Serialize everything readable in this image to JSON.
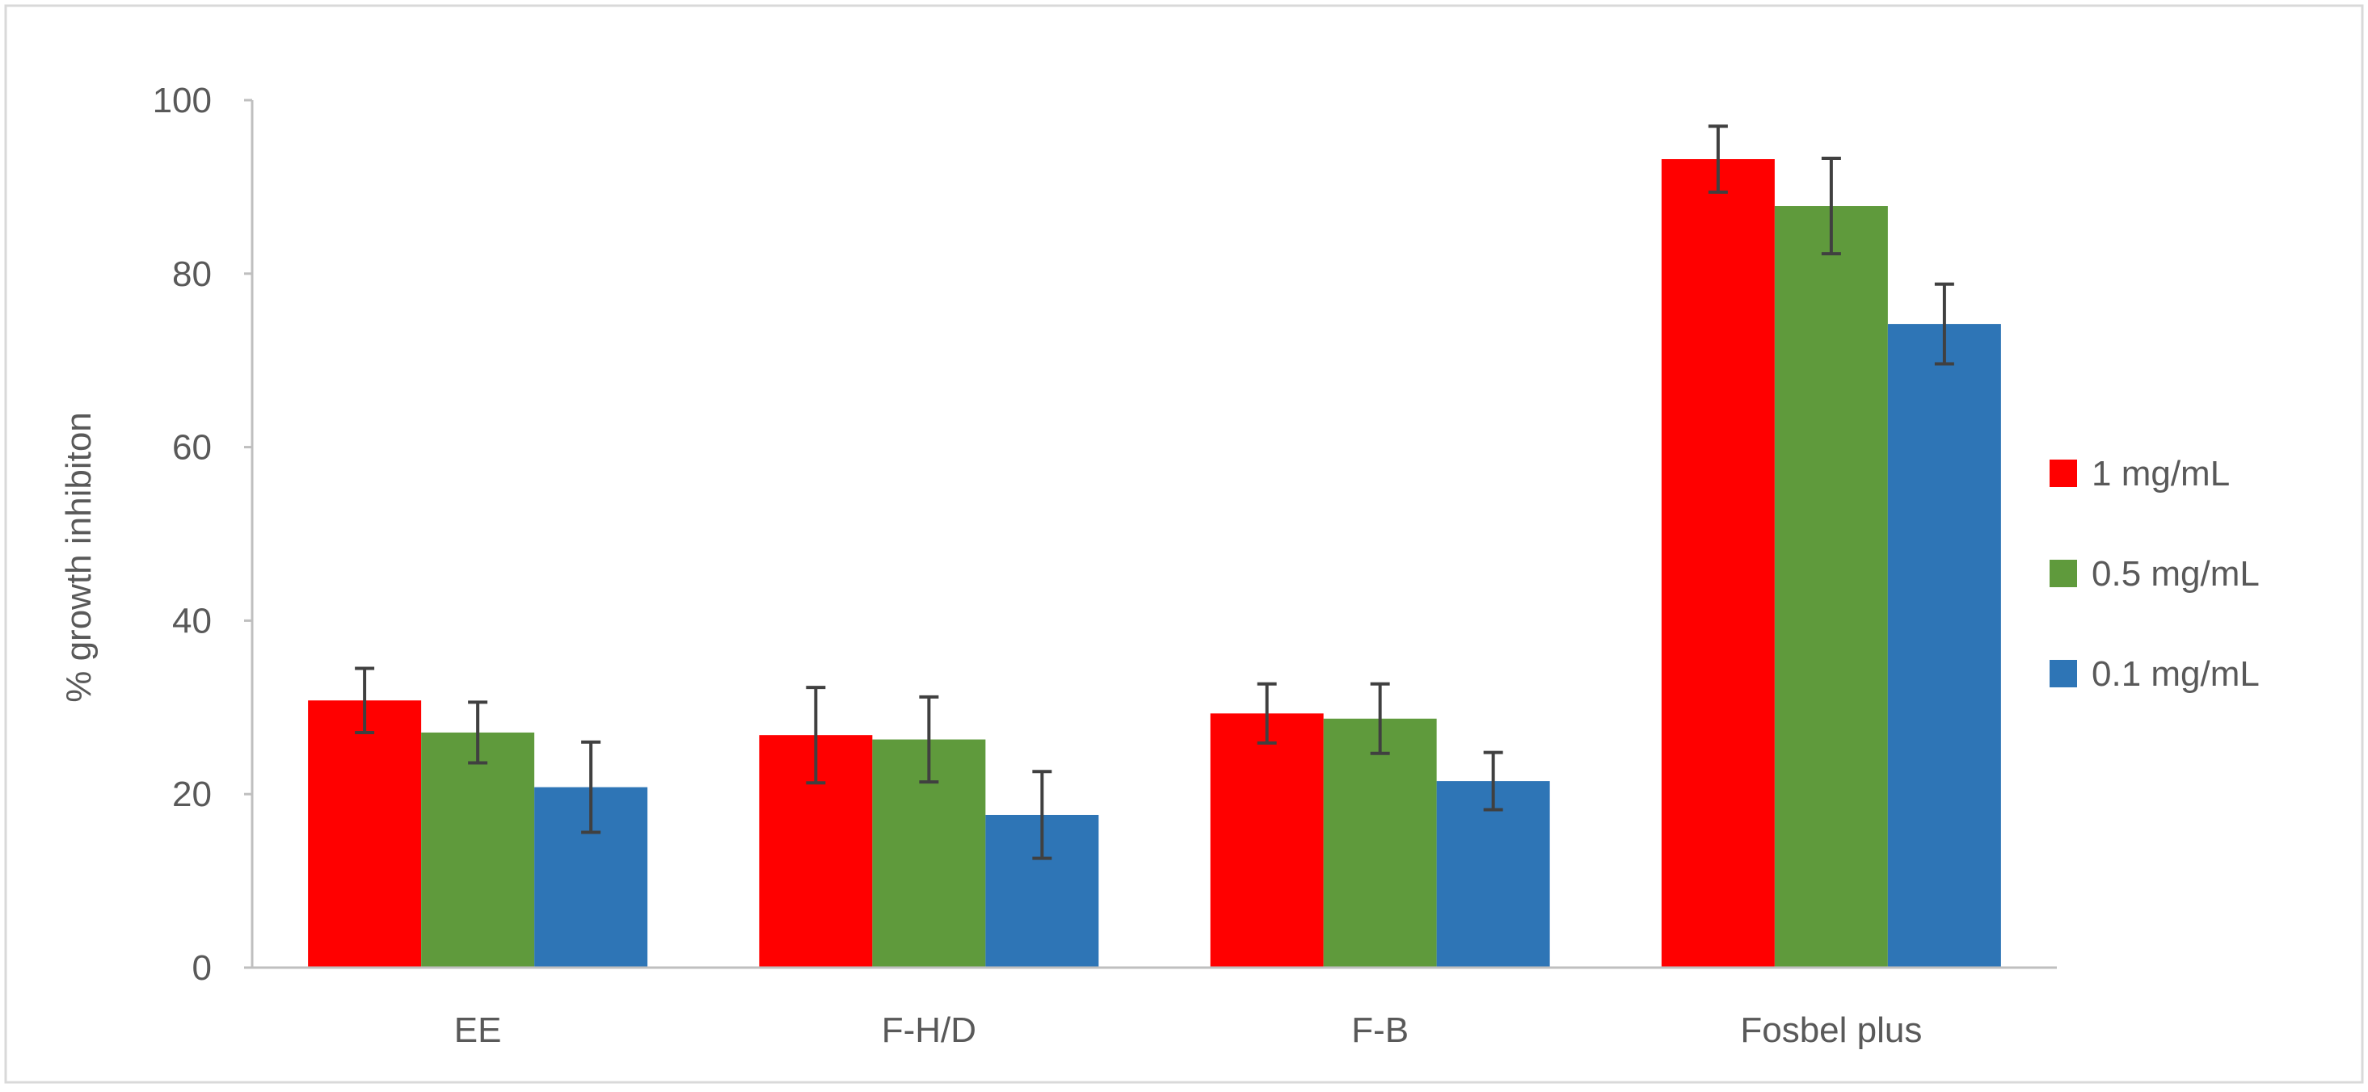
{
  "chart_data": {
    "type": "bar",
    "title": "",
    "xlabel": "",
    "ylabel": "% growth inhibiton",
    "categories": [
      "EE",
      "F-H/D",
      "F-B",
      "Fosbel plus"
    ],
    "ylim": [
      0,
      100
    ],
    "yticks": [
      0,
      20,
      40,
      60,
      80,
      100
    ],
    "grid": false,
    "legend_position": "right",
    "series": [
      {
        "name": "1 mg/mL",
        "color": "#ff0000",
        "values": [
          30.8,
          26.8,
          29.3,
          93.2
        ],
        "errors": [
          3.7,
          5.5,
          3.4,
          3.8
        ]
      },
      {
        "name": "0.5 mg/mL",
        "color": "#5f9a3c",
        "values": [
          27.1,
          26.3,
          28.7,
          87.8
        ],
        "errors": [
          3.5,
          4.9,
          4.0,
          5.5
        ]
      },
      {
        "name": "0.1 mg/mL",
        "color": "#2e75b6",
        "values": [
          20.8,
          17.6,
          21.5,
          74.2
        ],
        "errors": [
          5.2,
          5.0,
          3.3,
          4.6
        ]
      }
    ]
  }
}
